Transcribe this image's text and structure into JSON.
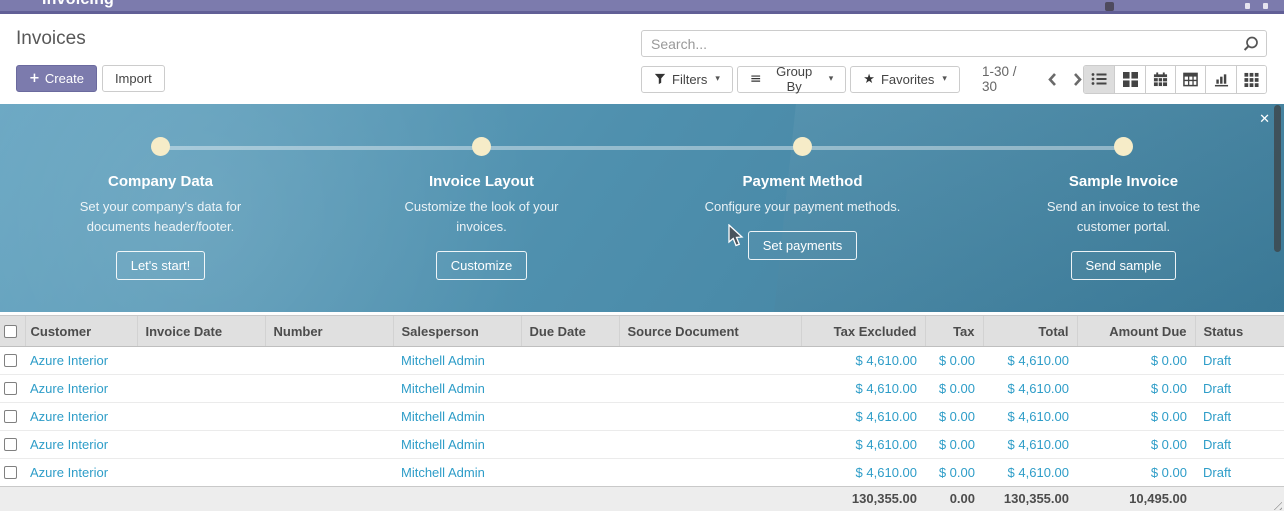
{
  "colors": {
    "brand_purple": "#7c7bad",
    "link_cyan": "#2e9dc8",
    "banner_blue_start": "#68a6c2",
    "banner_blue_end": "#3e7e9c",
    "step_dot": "#f6ecc8"
  },
  "navbar": {
    "app_name": "Invoicing"
  },
  "control_panel": {
    "title": "Invoices",
    "create_label": "Create",
    "import_label": "Import",
    "search_placeholder": "Search...",
    "filters_label": "Filters",
    "group_by_label": "Group By",
    "favorites_label": "Favorites",
    "pager_text": "1-30 / 30"
  },
  "icons": {
    "plus": "+",
    "group_bars": "≡",
    "star": "★",
    "caret": "▾",
    "close": "✕"
  },
  "onboarding": {
    "steps": [
      {
        "title": "Company Data",
        "description": "Set your company's data for documents header/footer.",
        "button": "Let's start!"
      },
      {
        "title": "Invoice Layout",
        "description": "Customize the look of your invoices.",
        "button": "Customize"
      },
      {
        "title": "Payment Method",
        "description": "Configure your payment methods.",
        "button": "Set payments"
      },
      {
        "title": "Sample Invoice",
        "description": "Send an invoice to test the customer portal.",
        "button": "Send sample"
      }
    ]
  },
  "table": {
    "columns": [
      "Customer",
      "Invoice Date",
      "Number",
      "Salesperson",
      "Due Date",
      "Source Document",
      "Tax Excluded",
      "Tax",
      "Total",
      "Amount Due",
      "Status"
    ],
    "rows": [
      {
        "customer": "Azure Interior",
        "invoice_date": "",
        "number": "",
        "salesperson": "Mitchell Admin",
        "due_date": "",
        "source_document": "",
        "tax_excluded": "$ 4,610.00",
        "tax": "$ 0.00",
        "total": "$ 4,610.00",
        "amount_due": "$ 0.00",
        "status": "Draft"
      },
      {
        "customer": "Azure Interior",
        "invoice_date": "",
        "number": "",
        "salesperson": "Mitchell Admin",
        "due_date": "",
        "source_document": "",
        "tax_excluded": "$ 4,610.00",
        "tax": "$ 0.00",
        "total": "$ 4,610.00",
        "amount_due": "$ 0.00",
        "status": "Draft"
      },
      {
        "customer": "Azure Interior",
        "invoice_date": "",
        "number": "",
        "salesperson": "Mitchell Admin",
        "due_date": "",
        "source_document": "",
        "tax_excluded": "$ 4,610.00",
        "tax": "$ 0.00",
        "total": "$ 4,610.00",
        "amount_due": "$ 0.00",
        "status": "Draft"
      },
      {
        "customer": "Azure Interior",
        "invoice_date": "",
        "number": "",
        "salesperson": "Mitchell Admin",
        "due_date": "",
        "source_document": "",
        "tax_excluded": "$ 4,610.00",
        "tax": "$ 0.00",
        "total": "$ 4,610.00",
        "amount_due": "$ 0.00",
        "status": "Draft"
      },
      {
        "customer": "Azure Interior",
        "invoice_date": "",
        "number": "",
        "salesperson": "Mitchell Admin",
        "due_date": "",
        "source_document": "",
        "tax_excluded": "$ 4,610.00",
        "tax": "$ 0.00",
        "total": "$ 4,610.00",
        "amount_due": "$ 0.00",
        "status": "Draft"
      }
    ],
    "footer": {
      "tax_excluded": "130,355.00",
      "tax": "0.00",
      "total": "130,355.00",
      "amount_due": "10,495.00"
    }
  }
}
